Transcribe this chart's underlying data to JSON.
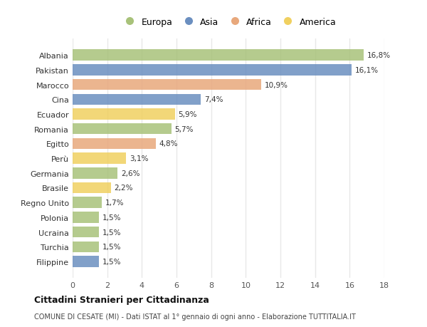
{
  "countries": [
    "Albania",
    "Pakistan",
    "Marocco",
    "Cina",
    "Ecuador",
    "Romania",
    "Egitto",
    "Perù",
    "Germania",
    "Brasile",
    "Regno Unito",
    "Polonia",
    "Ucraina",
    "Turchia",
    "Filippine"
  ],
  "values": [
    16.8,
    16.1,
    10.9,
    7.4,
    5.9,
    5.7,
    4.8,
    3.1,
    2.6,
    2.2,
    1.7,
    1.5,
    1.5,
    1.5,
    1.5
  ],
  "continents": [
    "Europa",
    "Asia",
    "Africa",
    "Asia",
    "America",
    "Europa",
    "Africa",
    "America",
    "Europa",
    "America",
    "Europa",
    "Europa",
    "Europa",
    "Europa",
    "Asia"
  ],
  "continent_colors": {
    "Europa": "#a8c27a",
    "Asia": "#6b8fc0",
    "Africa": "#e8a87c",
    "America": "#f0d060"
  },
  "legend_order": [
    "Europa",
    "Asia",
    "Africa",
    "America"
  ],
  "title": "Cittadini Stranieri per Cittadinanza",
  "subtitle": "COMUNE DI CESATE (MI) - Dati ISTAT al 1° gennaio di ogni anno - Elaborazione TUTTITALIA.IT",
  "xlim": [
    0,
    18
  ],
  "xticks": [
    0,
    2,
    4,
    6,
    8,
    10,
    12,
    14,
    16,
    18
  ],
  "background_color": "#ffffff",
  "grid_color": "#e8e8e8",
  "bar_height": 0.75
}
